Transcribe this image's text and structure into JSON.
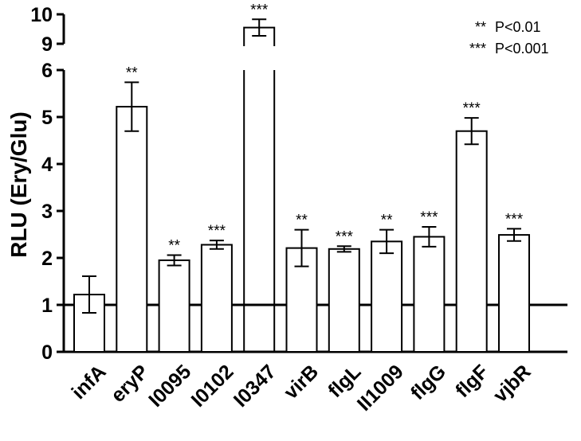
{
  "chart_data": {
    "type": "bar",
    "ylabel": "RLU (Ery/Glu)",
    "xlabel": "",
    "title": "",
    "categories": [
      "infA",
      "eryP",
      "I0095",
      "I0102",
      "I0347",
      "virB",
      "flgL",
      "II1009",
      "flgG",
      "flgF",
      "vjbR"
    ],
    "values": [
      1.22,
      5.22,
      1.95,
      2.28,
      9.55,
      2.21,
      2.19,
      2.35,
      2.45,
      4.7,
      2.49
    ],
    "errors": [
      0.39,
      0.52,
      0.11,
      0.09,
      0.28,
      0.39,
      0.06,
      0.25,
      0.21,
      0.28,
      0.13
    ],
    "significance": [
      "",
      "**",
      "**",
      "***",
      "***",
      "**",
      "***",
      "**",
      "***",
      "***",
      "***"
    ],
    "y_ticks_lower": [
      "0",
      "1",
      "2",
      "3",
      "4",
      "5",
      "6"
    ],
    "y_ticks_upper": [
      "9",
      "10"
    ],
    "ylim": [
      0,
      10
    ],
    "y_axis_break": [
      6,
      9
    ],
    "reference_line": 1,
    "bar_color": "#ffffff",
    "edge_color": "#000000",
    "legend": [
      {
        "symbol": "**",
        "label": "P<0.01"
      },
      {
        "symbol": "***",
        "label": "P<0.001"
      }
    ]
  }
}
